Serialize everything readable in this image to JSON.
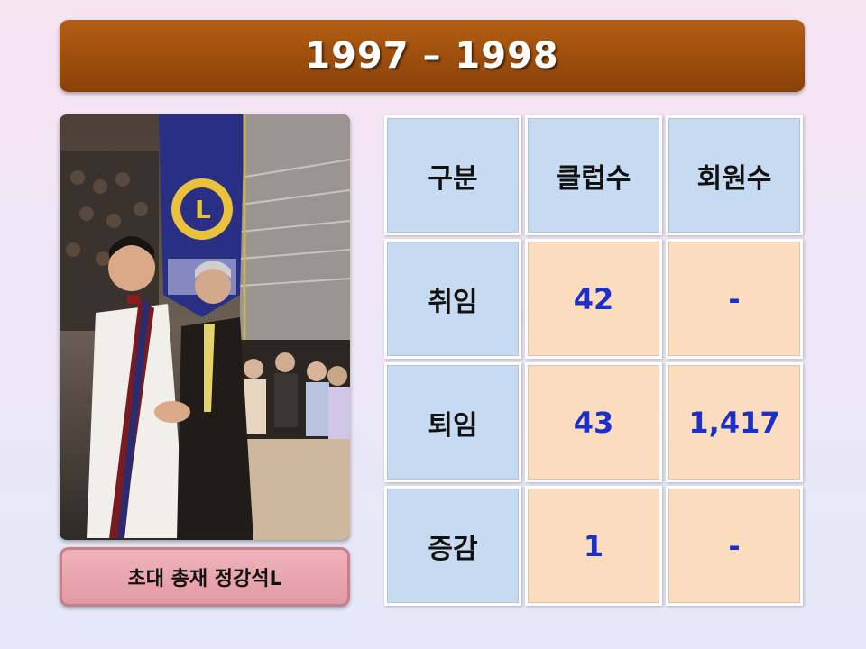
{
  "title": "1997 – 1998",
  "photo": {
    "caption": "초대 총재 정강석L"
  },
  "table": {
    "headers": [
      "구분",
      "클럽수",
      "회원수"
    ],
    "rows": [
      {
        "label": "취임",
        "clubs": "42",
        "members": "-"
      },
      {
        "label": "퇴임",
        "clubs": "43",
        "members": "1,417"
      },
      {
        "label": "증감",
        "clubs": "1",
        "members": "-"
      }
    ]
  },
  "colors": {
    "title_bar": "#9a4c0c",
    "header_cell": "#c6daf1",
    "value_cell": "#fcdcbf",
    "value_text": "#1c2fc9",
    "caption_box": "#e8a4ad"
  }
}
